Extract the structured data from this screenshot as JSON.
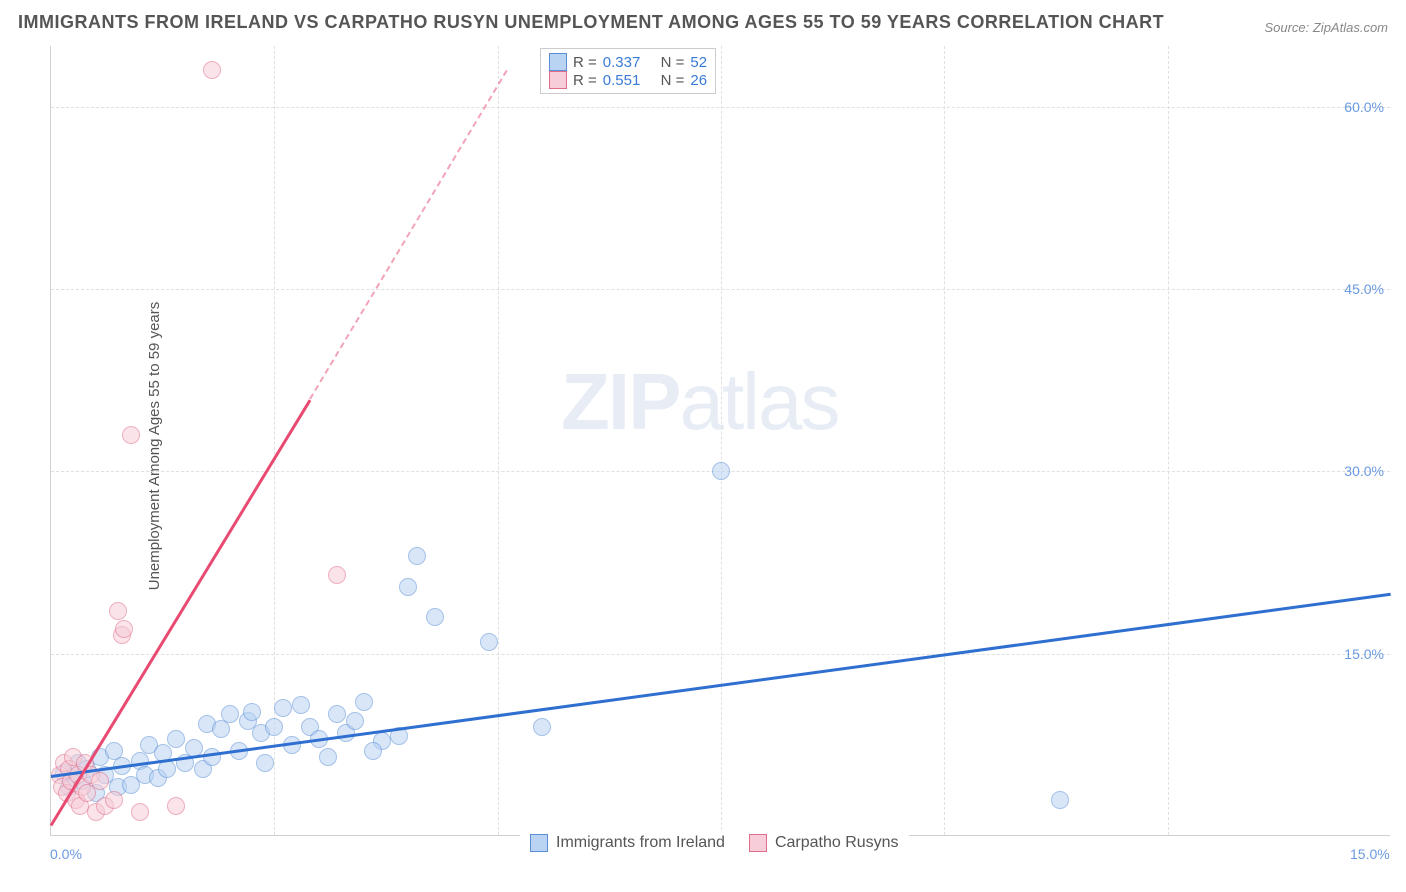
{
  "title": "IMMIGRANTS FROM IRELAND VS CARPATHO RUSYN UNEMPLOYMENT AMONG AGES 55 TO 59 YEARS CORRELATION CHART",
  "source": "Source: ZipAtlas.com",
  "ylabel": "Unemployment Among Ages 55 to 59 years",
  "watermark_a": "ZIP",
  "watermark_b": "atlas",
  "chart": {
    "type": "scatter",
    "xlim": [
      0,
      15
    ],
    "ylim": [
      0,
      65
    ],
    "x_ticks": [
      0.0,
      15.0
    ],
    "x_tick_labels": [
      "0.0%",
      "15.0%"
    ],
    "y_ticks": [
      15.0,
      30.0,
      45.0,
      60.0
    ],
    "y_tick_labels": [
      "15.0%",
      "30.0%",
      "45.0%",
      "60.0%"
    ],
    "x_minor_grid": [
      2.5,
      5.0,
      7.5,
      10.0,
      12.5
    ],
    "background_color": "#ffffff",
    "grid_color": "#e0e0e0",
    "point_radius": 9,
    "point_opacity": 0.55,
    "series": [
      {
        "name": "Immigrants from Ireland",
        "color_fill": "#b9d3f3",
        "color_stroke": "#5a8fd6",
        "R": 0.337,
        "N": 52,
        "trend": {
          "x0": 0,
          "y0": 5.0,
          "x1": 15,
          "y1": 20.0,
          "color": "#2f6fd0",
          "width": 3
        },
        "points": [
          [
            0.15,
            5.2
          ],
          [
            0.2,
            4.0
          ],
          [
            0.3,
            6.0
          ],
          [
            0.35,
            4.5
          ],
          [
            0.4,
            5.5
          ],
          [
            0.5,
            3.5
          ],
          [
            0.55,
            6.5
          ],
          [
            0.6,
            5.0
          ],
          [
            0.7,
            7.0
          ],
          [
            0.75,
            4.0
          ],
          [
            0.8,
            5.8
          ],
          [
            0.9,
            4.2
          ],
          [
            1.0,
            6.2
          ],
          [
            1.05,
            5.0
          ],
          [
            1.1,
            7.5
          ],
          [
            1.2,
            4.8
          ],
          [
            1.25,
            6.8
          ],
          [
            1.3,
            5.5
          ],
          [
            1.4,
            8.0
          ],
          [
            1.5,
            6.0
          ],
          [
            1.6,
            7.2
          ],
          [
            1.7,
            5.5
          ],
          [
            1.75,
            9.2
          ],
          [
            1.8,
            6.5
          ],
          [
            1.9,
            8.8
          ],
          [
            2.0,
            10.0
          ],
          [
            2.1,
            7.0
          ],
          [
            2.2,
            9.5
          ],
          [
            2.25,
            10.2
          ],
          [
            2.35,
            8.5
          ],
          [
            2.4,
            6.0
          ],
          [
            2.5,
            9.0
          ],
          [
            2.6,
            10.5
          ],
          [
            2.7,
            7.5
          ],
          [
            2.8,
            10.8
          ],
          [
            2.9,
            9.0
          ],
          [
            3.0,
            8.0
          ],
          [
            3.1,
            6.5
          ],
          [
            3.2,
            10.0
          ],
          [
            3.3,
            8.5
          ],
          [
            3.4,
            9.5
          ],
          [
            3.5,
            11.0
          ],
          [
            3.7,
            7.8
          ],
          [
            3.9,
            8.2
          ],
          [
            4.0,
            20.5
          ],
          [
            4.1,
            23.0
          ],
          [
            4.3,
            18.0
          ],
          [
            4.9,
            16.0
          ],
          [
            5.5,
            9.0
          ],
          [
            7.5,
            30.0
          ],
          [
            11.3,
            3.0
          ],
          [
            3.6,
            7.0
          ]
        ]
      },
      {
        "name": "Carpatho Rusyns",
        "color_fill": "#f6cdd8",
        "color_stroke": "#e06e8a",
        "R": 0.551,
        "N": 26,
        "trend": {
          "x0": 0,
          "y0": 1.0,
          "x1": 2.9,
          "y1": 36.0,
          "color": "#e84a72",
          "width": 3,
          "dash_after_y": 36.0,
          "dash_x1": 5.1,
          "dash_y1": 63.0
        },
        "points": [
          [
            0.1,
            5.0
          ],
          [
            0.12,
            4.0
          ],
          [
            0.15,
            6.0
          ],
          [
            0.18,
            3.5
          ],
          [
            0.2,
            5.5
          ],
          [
            0.22,
            4.5
          ],
          [
            0.25,
            6.5
          ],
          [
            0.28,
            3.0
          ],
          [
            0.3,
            5.0
          ],
          [
            0.32,
            2.5
          ],
          [
            0.35,
            4.0
          ],
          [
            0.38,
            6.0
          ],
          [
            0.4,
            3.5
          ],
          [
            0.45,
            5.0
          ],
          [
            0.5,
            2.0
          ],
          [
            0.55,
            4.5
          ],
          [
            0.6,
            2.5
          ],
          [
            0.7,
            3.0
          ],
          [
            0.75,
            18.5
          ],
          [
            0.8,
            16.5
          ],
          [
            0.82,
            17.0
          ],
          [
            0.9,
            33.0
          ],
          [
            1.0,
            2.0
          ],
          [
            1.4,
            2.5
          ],
          [
            1.8,
            63.0
          ],
          [
            3.2,
            21.5
          ]
        ]
      }
    ]
  },
  "legend_top": {
    "R_label": "R =",
    "N_label": "N =",
    "value_color": "#3a7bd5",
    "text_color": "#555"
  },
  "legend_bottom_labels": [
    "Immigrants from Ireland",
    "Carpatho Rusyns"
  ]
}
